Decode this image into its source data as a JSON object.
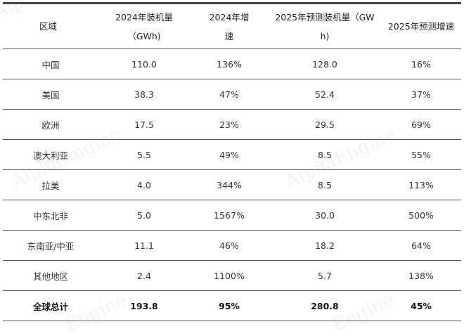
{
  "watermark": "AlphaEngine",
  "table": {
    "headers": [
      "区域",
      "2024年装机量（GWh)",
      "2024年增速",
      "2025年预测装机量（GWh)",
      "2025年预测增速"
    ],
    "rows": [
      [
        "中国",
        "110.0",
        "136%",
        "128.0",
        "16%"
      ],
      [
        "美国",
        "38.3",
        "47%",
        "52.4",
        "37%"
      ],
      [
        "欧洲",
        "17.5",
        "23%",
        "29.5",
        "69%"
      ],
      [
        "澳大利亚",
        "5.5",
        "49%",
        "8.5",
        "55%"
      ],
      [
        "拉美",
        "4.0",
        "344%",
        "8.5",
        "113%"
      ],
      [
        "中东北非",
        "5.0",
        "1567%",
        "30.0",
        "500%"
      ],
      [
        "东南亚/中亚",
        "11.1",
        "46%",
        "18.2",
        "64%"
      ],
      [
        "其他地区",
        "2.4",
        "1100%",
        "5.7",
        "138%"
      ]
    ],
    "total": [
      "全球总计",
      "193.8",
      "95%",
      "280.8",
      "45%"
    ]
  }
}
